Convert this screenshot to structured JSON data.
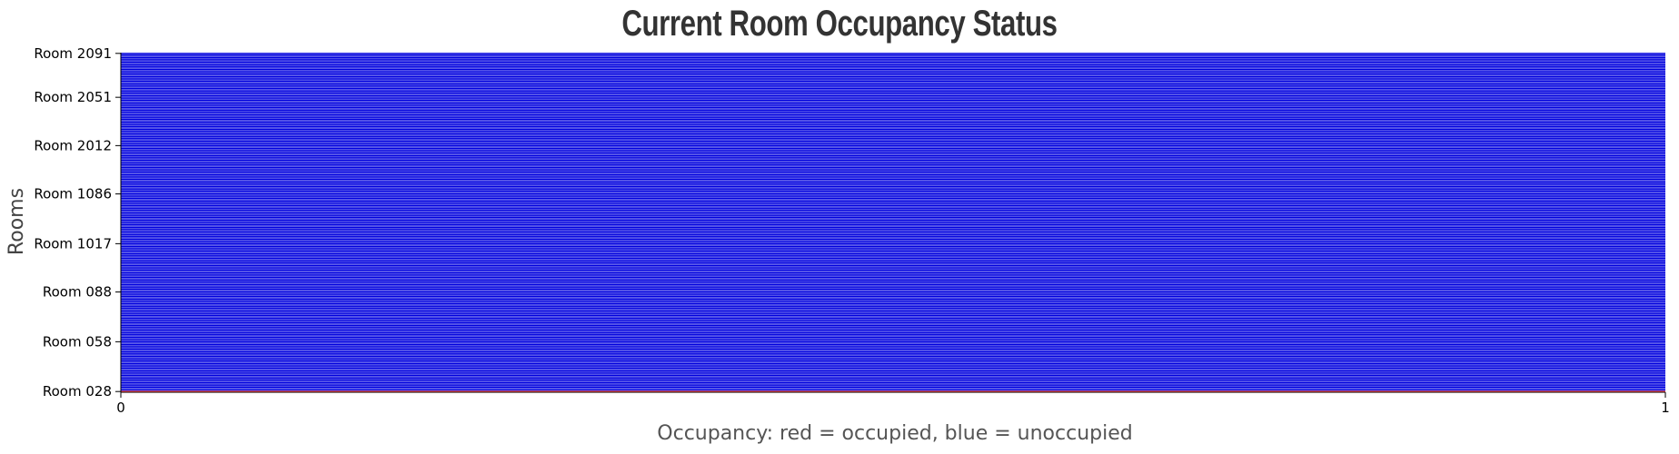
{
  "chart_data": {
    "type": "bar",
    "orientation": "horizontal",
    "title": "Current Room Occupancy Status",
    "xlabel": "Occupancy: red = occupied, blue = unoccupied",
    "ylabel": "Rooms",
    "xlim": [
      0,
      1
    ],
    "x_ticks": [
      "0",
      "1"
    ],
    "y_tick_labels": [
      "Room 028",
      "Room 058",
      "Room 088",
      "Room 1017",
      "Room 1086",
      "Room 2012",
      "Room 2051",
      "Room 2091"
    ],
    "y_tick_positions": [
      0,
      34,
      68,
      101,
      135,
      168,
      201,
      231
    ],
    "category_count": 232,
    "occupied_indices": [
      0
    ],
    "values": "every room has value 1 (full-width bar)",
    "colors": {
      "occupied": "#ff2a2a",
      "unoccupied": "#0000dd",
      "background": "#ffffff"
    },
    "grid": false,
    "legend": "none"
  }
}
